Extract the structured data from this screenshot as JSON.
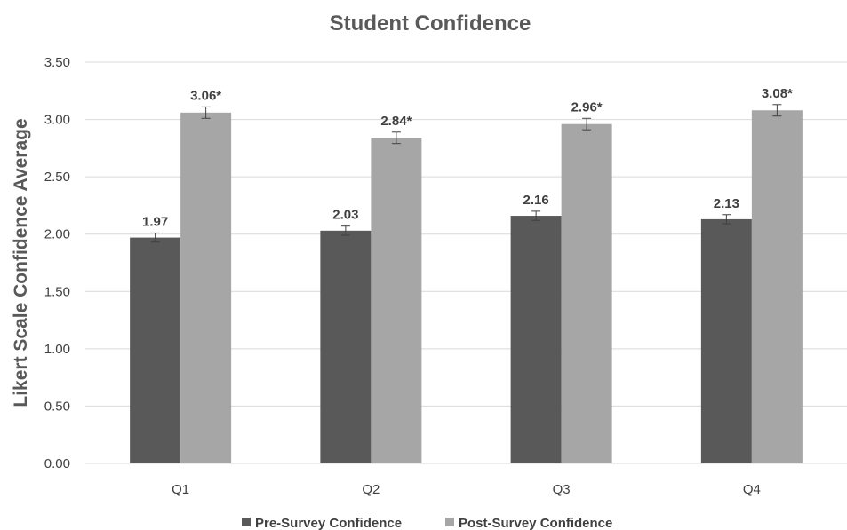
{
  "chart_data": {
    "type": "bar",
    "title": "Student Confidence",
    "xlabel": "",
    "ylabel": "Likert Scale Confidence Average",
    "categories": [
      "Q1",
      "Q2",
      "Q3",
      "Q4"
    ],
    "ylim": [
      0,
      3.5
    ],
    "yticks": [
      "0.00",
      "0.50",
      "1.00",
      "1.50",
      "2.00",
      "2.50",
      "3.00",
      "3.50"
    ],
    "grid": true,
    "legend_position": "bottom",
    "series": [
      {
        "name": "Pre-Survey Confidence",
        "color": "#595959",
        "values": [
          1.97,
          2.03,
          2.16,
          2.13
        ],
        "labels": [
          "1.97",
          "2.03",
          "2.16",
          "2.13"
        ],
        "error": [
          0.04,
          0.04,
          0.04,
          0.04
        ]
      },
      {
        "name": "Post-Survey Confidence",
        "color": "#a6a6a6",
        "values": [
          3.06,
          2.84,
          2.96,
          3.08
        ],
        "labels": [
          "3.06*",
          "2.84*",
          "2.96*",
          "3.08*"
        ],
        "error": [
          0.05,
          0.05,
          0.05,
          0.05
        ]
      }
    ]
  }
}
